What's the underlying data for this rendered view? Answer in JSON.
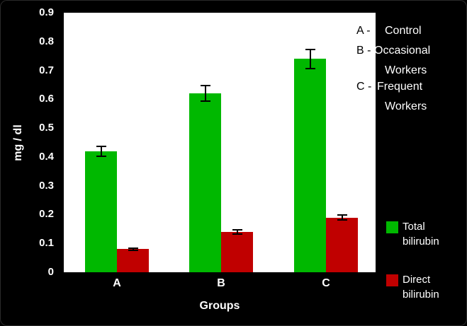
{
  "chart_data": {
    "type": "bar",
    "title": "",
    "categories": [
      "A",
      "B",
      "C"
    ],
    "series": [
      {
        "name": "Total bilirubin",
        "color": "#00b800",
        "values": [
          0.42,
          0.62,
          0.74
        ],
        "errors": [
          0.02,
          0.03,
          0.035
        ]
      },
      {
        "name": "Direct bilirubin",
        "color": "#c00000",
        "values": [
          0.08,
          0.14,
          0.19
        ],
        "errors": [
          0.007,
          0.01,
          0.01
        ]
      }
    ],
    "xlabel": "Groups",
    "ylabel": "mg / dl",
    "ylim": [
      0,
      0.9
    ],
    "y_ticks": [
      "0",
      "0.1",
      "0.2",
      "0.3",
      "0.4",
      "0.5",
      "0.6",
      "0.7",
      "0.8",
      "0.9"
    ],
    "grid": false,
    "legend_position": "right",
    "background": "#000000",
    "plot_background": "#ffffff"
  },
  "annotations": {
    "line1_key": "A -",
    "line1_label": "Control",
    "line2_key": "B -",
    "line2_label": "Occasional",
    "line3_label": "Workers",
    "line4_key": "C -",
    "line4_label": "Frequent",
    "line5_label": "Workers"
  }
}
